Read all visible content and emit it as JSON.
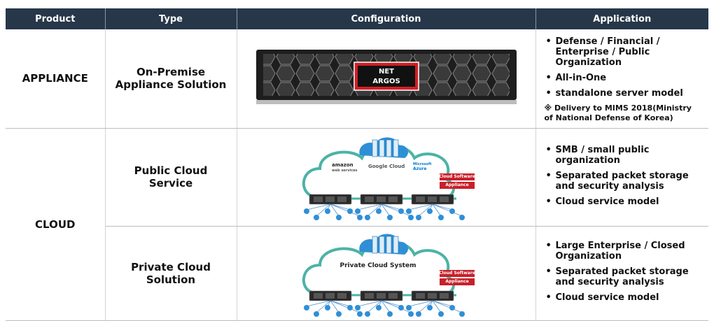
{
  "table": {
    "headers": [
      "Product",
      "Type",
      "Configuration",
      "Application"
    ],
    "rows": [
      {
        "product": "APPLIANCE",
        "type": "On-Premise Appliance Solution",
        "configuration": {
          "logo": [
            "NET",
            "ARGOS"
          ]
        },
        "application": {
          "bullets": [
            "Defense / Financial / Enterprise / Public Organization",
            "All-in-One",
            "standalone server model"
          ],
          "note": "※ Delivery to MIMS 2018(Ministry of National Defense of Korea)"
        }
      },
      {
        "product": "CLOUD",
        "type": "Public Cloud Service",
        "configuration": {
          "providers": [
            "amazon",
            "web services",
            "Google Cloud",
            "Microsoft",
            "Azure"
          ],
          "tags": [
            "Cloud Software",
            "Appliance"
          ]
        },
        "application": {
          "bullets": [
            "SMB / small public organization",
            "Separated packet storage and security analysis",
            "Cloud service model"
          ]
        }
      },
      {
        "type": "Private Cloud Solution",
        "configuration": {
          "label": "Private Cloud System",
          "tags": [
            "Cloud Software",
            "Appliance"
          ]
        },
        "application": {
          "bullets": [
            "Large Enterprise / Closed Organization",
            "Separated packet storage and security analysis",
            "Cloud service model"
          ]
        }
      }
    ]
  }
}
